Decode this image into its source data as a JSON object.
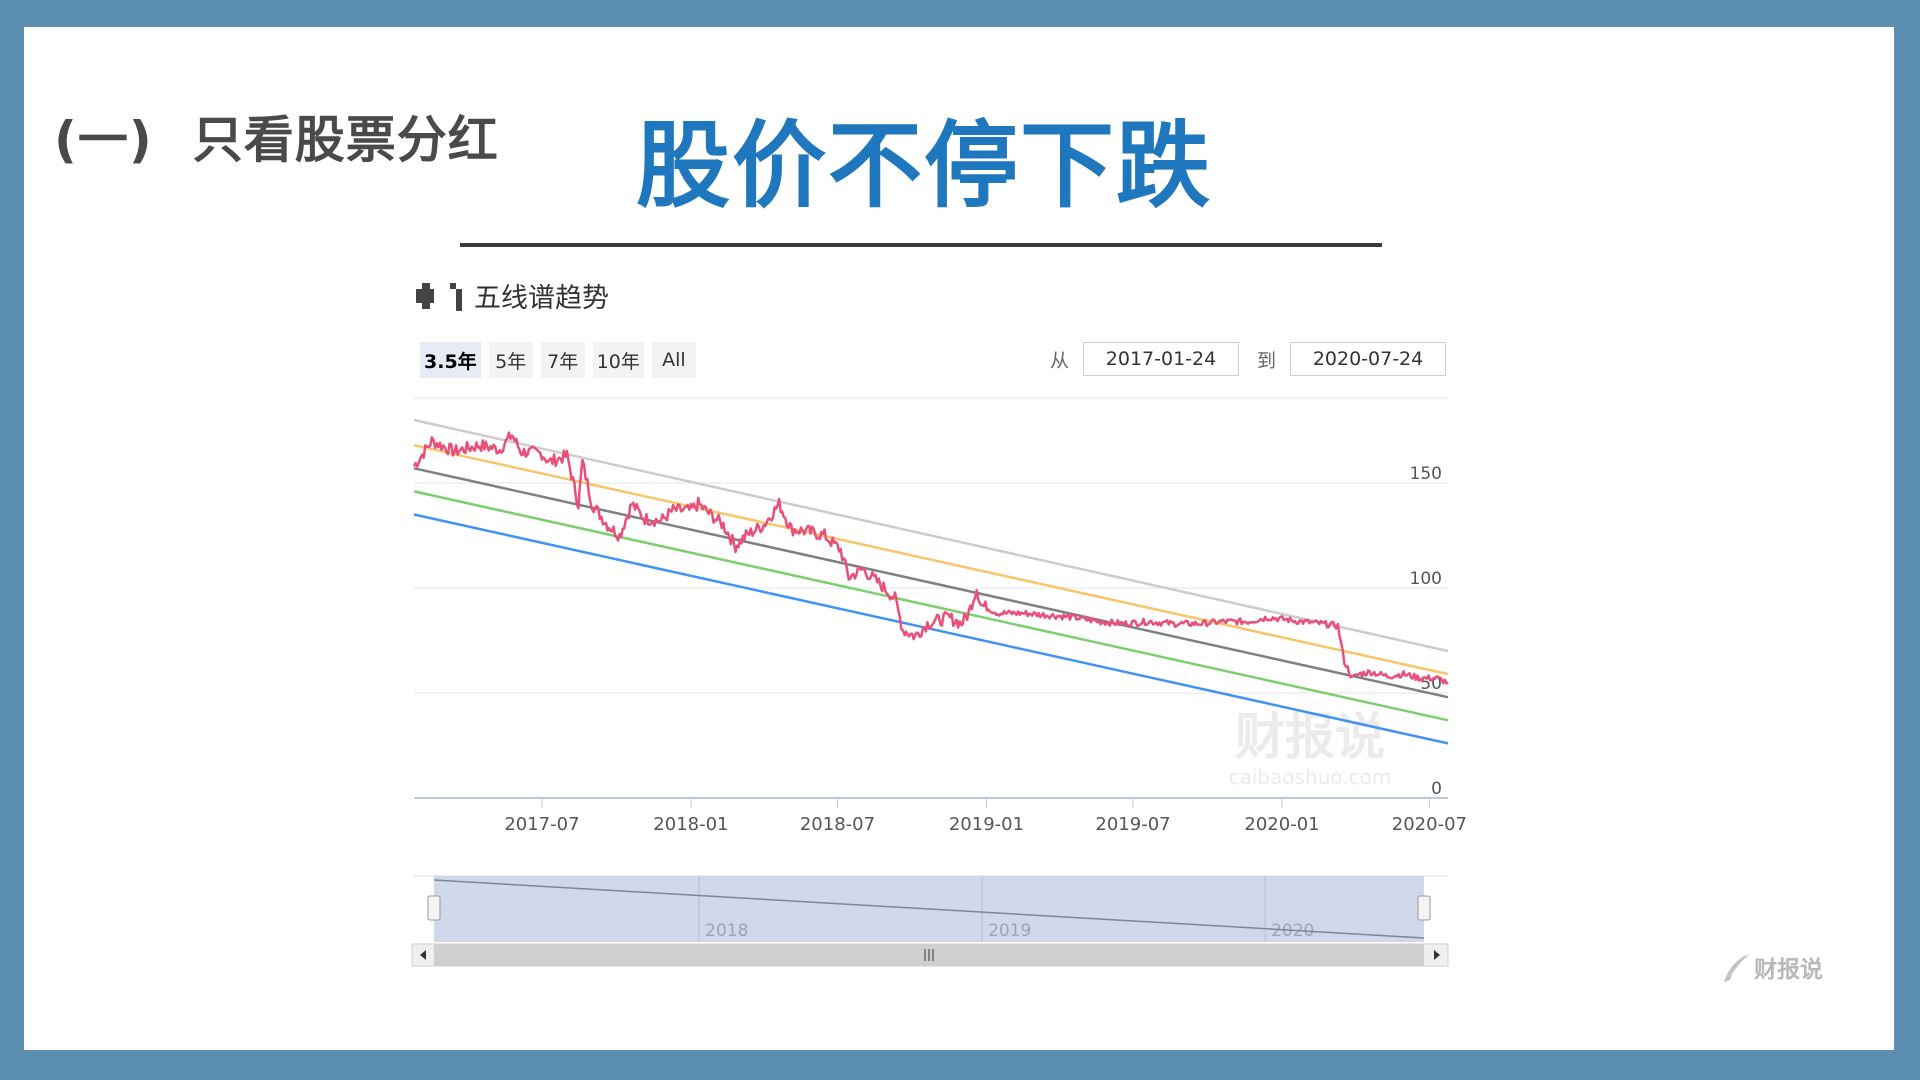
{
  "header": {
    "section_number": "(一)",
    "section_title": "只看股票分红",
    "headline": "股价不停下跌"
  },
  "panel": {
    "title": "五线谱趋势",
    "range_buttons": [
      "3.5年",
      "5年",
      "7年",
      "10年",
      "All"
    ],
    "active_range": "3.5年",
    "from_label": "从",
    "from_value": "2017-01-24",
    "to_label": "到",
    "to_value": "2020-07-24"
  },
  "watermark": {
    "text": "财报说",
    "domain": "caibaoshuo.com"
  },
  "brand": {
    "text": "财报说"
  },
  "colors": {
    "headline": "#1f77be",
    "price": "#e8507a",
    "band_top": "#cccccc",
    "band_upper": "#f9c56a",
    "band_mid": "#808080",
    "band_lower": "#7ccf6e",
    "band_bottom": "#3f93f5",
    "navigator_fill": "#cfd8ea"
  },
  "chart_data": {
    "type": "line",
    "x_range": [
      "2017-01-24",
      "2020-07-24"
    ],
    "ylim": [
      0,
      180
    ],
    "y_ticks": [
      0,
      50,
      100,
      150
    ],
    "x_ticks": [
      "2017-07",
      "2018-01",
      "2018-07",
      "2019-01",
      "2019-07",
      "2020-01",
      "2020-07"
    ],
    "navigator_labels": [
      "2018",
      "2019",
      "2020"
    ],
    "trend_lines": [
      {
        "key": "band_top",
        "start": 180,
        "end": 70
      },
      {
        "key": "band_upper",
        "start": 168,
        "end": 59
      },
      {
        "key": "band_mid",
        "start": 157,
        "end": 48
      },
      {
        "key": "band_lower",
        "start": 146,
        "end": 37
      },
      {
        "key": "band_bottom",
        "start": 135,
        "end": 26
      }
    ],
    "price_series": [
      [
        "2017-01-24",
        158
      ],
      [
        "2017-02-15",
        170
      ],
      [
        "2017-03-15",
        165
      ],
      [
        "2017-04-15",
        168
      ],
      [
        "2017-05-10",
        166
      ],
      [
        "2017-05-25",
        173
      ],
      [
        "2017-06-05",
        165
      ],
      [
        "2017-07-01",
        164
      ],
      [
        "2017-07-10",
        160
      ],
      [
        "2017-08-01",
        163
      ],
      [
        "2017-08-10",
        148
      ],
      [
        "2017-08-15",
        140
      ],
      [
        "2017-08-20",
        160
      ],
      [
        "2017-09-01",
        140
      ],
      [
        "2017-09-20",
        130
      ],
      [
        "2017-10-05",
        125
      ],
      [
        "2017-10-20",
        140
      ],
      [
        "2017-11-05",
        133
      ],
      [
        "2017-11-25",
        132
      ],
      [
        "2017-12-10",
        137
      ],
      [
        "2018-01-01",
        137
      ],
      [
        "2018-01-10",
        140
      ],
      [
        "2018-01-25",
        135
      ],
      [
        "2018-02-10",
        130
      ],
      [
        "2018-02-25",
        120
      ],
      [
        "2018-03-10",
        125
      ],
      [
        "2018-04-01",
        130
      ],
      [
        "2018-04-20",
        140
      ],
      [
        "2018-05-05",
        128
      ],
      [
        "2018-05-25",
        127
      ],
      [
        "2018-06-15",
        125
      ],
      [
        "2018-07-05",
        118
      ],
      [
        "2018-07-15",
        105
      ],
      [
        "2018-08-01",
        109
      ],
      [
        "2018-08-25",
        101
      ],
      [
        "2018-09-10",
        95
      ],
      [
        "2018-09-20",
        80
      ],
      [
        "2018-10-05",
        77
      ],
      [
        "2018-10-20",
        83
      ],
      [
        "2018-11-15",
        86
      ],
      [
        "2018-12-01",
        83
      ],
      [
        "2018-12-10",
        88
      ],
      [
        "2018-12-20",
        100
      ],
      [
        "2018-12-25",
        92
      ],
      [
        "2019-01-15",
        88
      ],
      [
        "2019-02-15",
        88
      ],
      [
        "2019-03-20",
        87
      ],
      [
        "2019-04-20",
        86
      ],
      [
        "2019-05-20",
        84
      ],
      [
        "2019-06-20",
        83
      ],
      [
        "2019-07-20",
        84
      ],
      [
        "2019-08-20",
        83
      ],
      [
        "2019-09-20",
        83
      ],
      [
        "2019-10-20",
        84
      ],
      [
        "2019-11-20",
        84
      ],
      [
        "2019-12-15",
        86
      ],
      [
        "2020-01-05",
        85
      ],
      [
        "2020-01-25",
        84
      ],
      [
        "2020-02-20",
        83
      ],
      [
        "2020-03-10",
        82
      ],
      [
        "2020-03-18",
        65
      ],
      [
        "2020-03-28",
        57
      ],
      [
        "2020-04-05",
        59
      ],
      [
        "2020-04-20",
        60
      ],
      [
        "2020-05-10",
        58
      ],
      [
        "2020-05-30",
        59
      ],
      [
        "2020-06-20",
        57
      ],
      [
        "2020-07-10",
        57
      ],
      [
        "2020-07-24",
        55
      ]
    ]
  }
}
